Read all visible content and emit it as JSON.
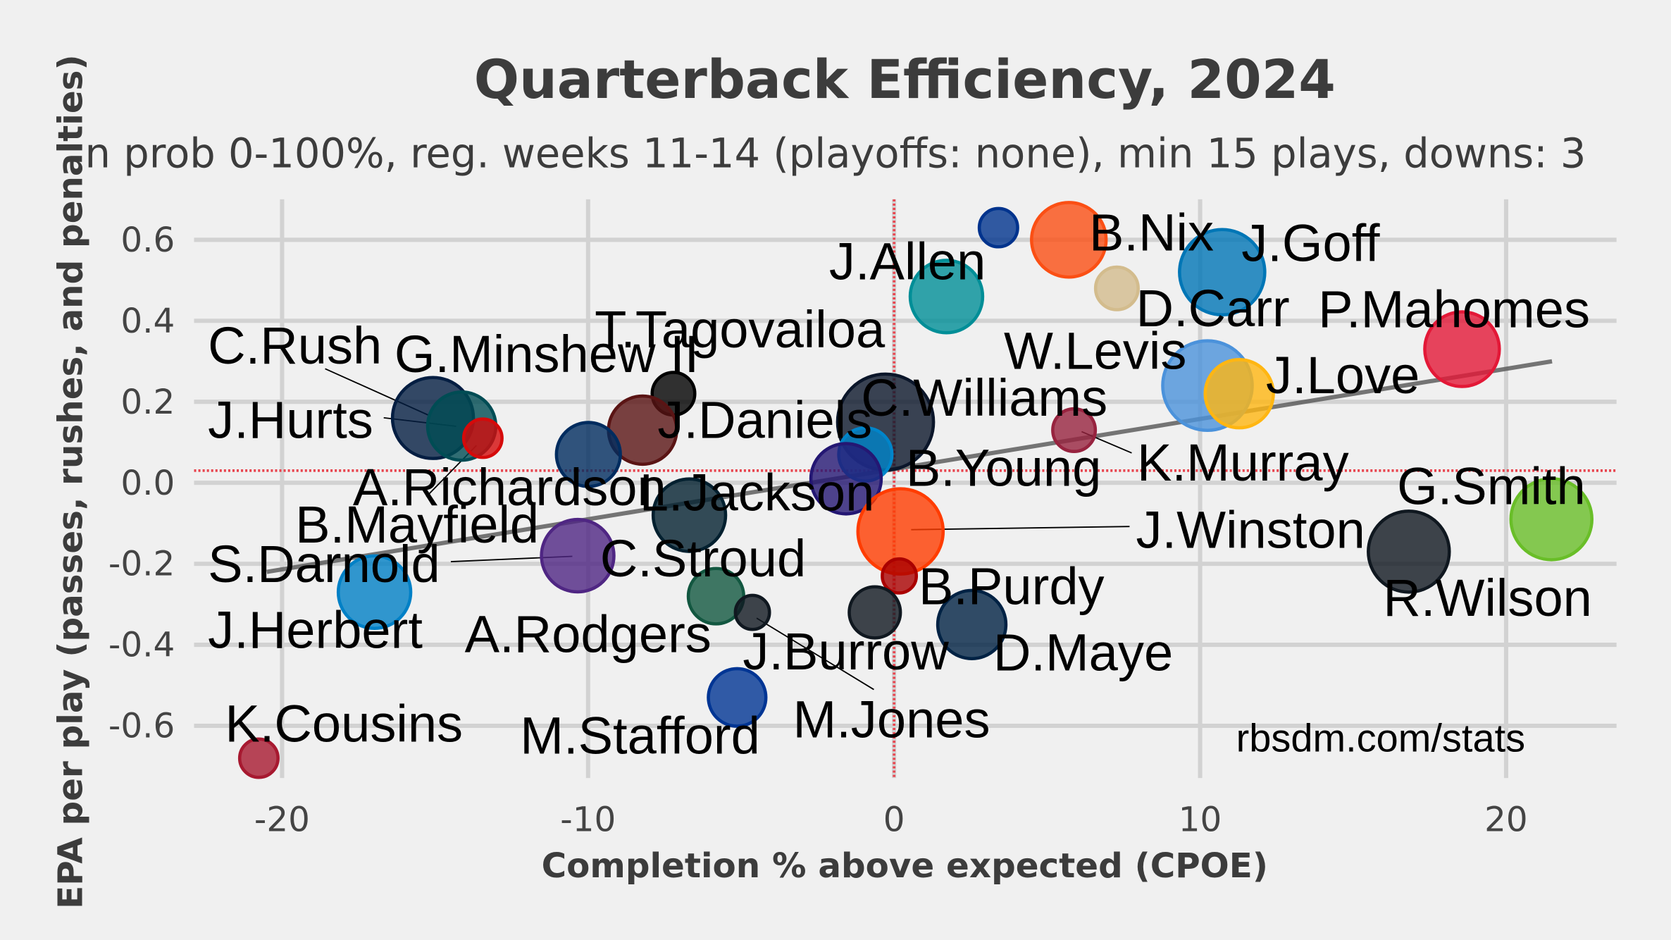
{
  "chart_data": {
    "type": "scatter",
    "title": "Quarterback Efficiency, 2024",
    "subtitle": "n prob 0-100%, reg. weeks 11-14 (playoffs: none), min 15 plays, downs: 3",
    "xlabel": "Completion % above expected (CPOE)",
    "ylabel": "EPA per play (passes, rushes, and penalties)",
    "watermark": "rbsdm.com/stats",
    "xlim": [
      -23,
      24
    ],
    "ylim": [
      -0.73,
      0.69
    ],
    "xticks": [
      -20,
      -10,
      0,
      10,
      20
    ],
    "xtick_labels": [
      "-20",
      "-10",
      "0",
      "10",
      "20"
    ],
    "yticks": [
      0.6,
      0.4,
      0.2,
      0.0,
      -0.2,
      -0.4,
      -0.6
    ],
    "ytick_labels": [
      "0.6",
      "0.4",
      "0.2",
      "0.0",
      "-0.2",
      "-0.4",
      "-0.6"
    ],
    "grid": true,
    "reference_lines": {
      "mean_x": 0.0,
      "mean_y": 0.03,
      "color": "#e8454f"
    },
    "trend_line": {
      "x": [
        -20.5,
        21.5
      ],
      "y": [
        -0.22,
        0.3
      ],
      "color": "#555555"
    },
    "points": [
      {
        "name": "J.Allen",
        "x": 3.41,
        "y": 0.63,
        "size": 18,
        "color": "#00338d"
      },
      {
        "name": "B.Nix",
        "x": 5.71,
        "y": 0.6,
        "size": 35,
        "color": "#fb4f14"
      },
      {
        "name": "J.Goff",
        "x": 10.72,
        "y": 0.52,
        "size": 40,
        "color": "#0076b6"
      },
      {
        "name": "D.Carr",
        "x": 7.28,
        "y": 0.48,
        "size": 20,
        "color": "#d3bc8d"
      },
      {
        "name": "T.Tagovailoa",
        "x": 1.71,
        "y": 0.46,
        "size": 34,
        "color": "#008e97"
      },
      {
        "name": "P.Mahomes",
        "x": 18.56,
        "y": 0.33,
        "size": 35,
        "color": "#e31837"
      },
      {
        "name": "W.Levis",
        "x": 10.24,
        "y": 0.24,
        "size": 42,
        "color": "#4b92db"
      },
      {
        "name": "J.Love",
        "x": 11.28,
        "y": 0.22,
        "size": 32,
        "color": "#ffb612"
      },
      {
        "name": "G.Minshew II",
        "x": -7.21,
        "y": 0.22,
        "size": 20,
        "color": "#000000"
      },
      {
        "name": "C.Rush",
        "x": -15.07,
        "y": 0.16,
        "size": 38,
        "color": "#041e42"
      },
      {
        "name": "J.Hurts",
        "x": -14.13,
        "y": 0.14,
        "size": 32,
        "color": "#004c54"
      },
      {
        "name": "B.Mayfield",
        "x": -13.44,
        "y": 0.11,
        "size": 18,
        "color": "#d50a0a"
      },
      {
        "name": "J.Daniels",
        "x": -8.22,
        "y": 0.13,
        "size": 32,
        "color": "#5a1414"
      },
      {
        "name": "A.Richardson",
        "x": -9.99,
        "y": 0.07,
        "size": 30,
        "color": "#002c5f"
      },
      {
        "name": "C.Williams",
        "x": -0.28,
        "y": 0.15,
        "size": 45,
        "color": "#0b162a"
      },
      {
        "name": "K.Murray",
        "x": 5.88,
        "y": 0.13,
        "size": 20,
        "color": "#97233f"
      },
      {
        "name": "B.Young",
        "x": -0.94,
        "y": 0.07,
        "size": 25,
        "color": "#0085ca"
      },
      {
        "name": "L.Jackson",
        "x": -1.57,
        "y": 0.01,
        "size": 33,
        "color": "#241773"
      },
      {
        "name": "C.Stroud",
        "x": -6.69,
        "y": -0.08,
        "size": 34,
        "color": "#03202f"
      },
      {
        "name": "G.Smith",
        "x": 21.48,
        "y": -0.09,
        "size": 38,
        "color": "#69be28"
      },
      {
        "name": "S.Darnold",
        "x": -10.34,
        "y": -0.18,
        "size": 34,
        "color": "#4f2683"
      },
      {
        "name": "J.Winston",
        "x": 0.21,
        "y": -0.12,
        "size": 40,
        "color": "#ff3c00"
      },
      {
        "name": "R.Wilson",
        "x": 16.82,
        "y": -0.17,
        "size": 38,
        "color": "#101820"
      },
      {
        "name": "J.Herbert",
        "x": -16.98,
        "y": -0.27,
        "size": 34,
        "color": "#0080c6"
      },
      {
        "name": "A.Rodgers",
        "x": -5.82,
        "y": -0.28,
        "size": 26,
        "color": "#125740"
      },
      {
        "name": "B.Purdy",
        "x": 0.17,
        "y": -0.23,
        "size": 16,
        "color": "#aa0000"
      },
      {
        "name": "M.Jones",
        "x": -4.63,
        "y": -0.32,
        "size": 16,
        "color": "#101820"
      },
      {
        "name": "J.Burrow",
        "x": -0.63,
        "y": -0.32,
        "size": 24,
        "color": "#101820"
      },
      {
        "name": "D.Maye",
        "x": 2.54,
        "y": -0.35,
        "size": 32,
        "color": "#002244"
      },
      {
        "name": "M.Stafford",
        "x": -5.13,
        "y": -0.53,
        "size": 27,
        "color": "#003594"
      },
      {
        "name": "K.Cousins",
        "x": -20.76,
        "y": -0.68,
        "size": 18,
        "color": "#a71930"
      }
    ]
  }
}
